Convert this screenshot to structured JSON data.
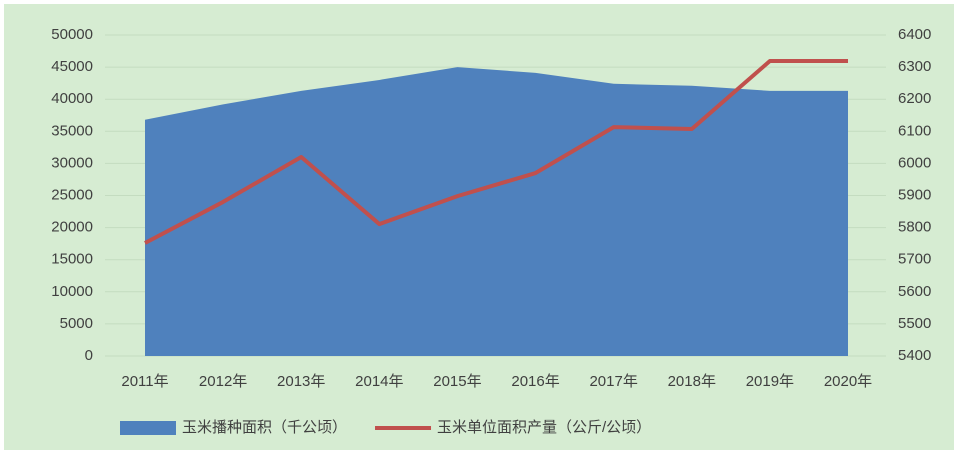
{
  "chart_data": {
    "type": "combo",
    "categories": [
      "2011年",
      "2012年",
      "2013年",
      "2014年",
      "2015年",
      "2016年",
      "2017年",
      "2018年",
      "2019年",
      "2020年"
    ],
    "series": [
      {
        "name": "玉米播种面积（千公顷）",
        "type": "area",
        "color": "#4f81bd",
        "axis": "y",
        "values": [
          36800,
          39200,
          41300,
          43000,
          45000,
          44100,
          42400,
          42100,
          41300,
          41300
        ]
      },
      {
        "name": "玉米单位面积产量（公斤/公顷）",
        "type": "line",
        "color": "#c0504d",
        "axis": "y2",
        "values": [
          5752,
          5880,
          6020,
          5811,
          5898,
          5970,
          6113,
          6107,
          6319,
          6319
        ]
      }
    ],
    "ylim": [
      0,
      50000
    ],
    "yticks": [
      0,
      5000,
      10000,
      15000,
      20000,
      25000,
      30000,
      35000,
      40000,
      45000,
      50000
    ],
    "y2lim": [
      5400,
      6400
    ],
    "y2ticks": [
      5400,
      5500,
      5600,
      5700,
      5800,
      5900,
      6000,
      6100,
      6200,
      6300,
      6400
    ],
    "grid": true,
    "legend": "bottom",
    "background": "#d6ecd2"
  }
}
